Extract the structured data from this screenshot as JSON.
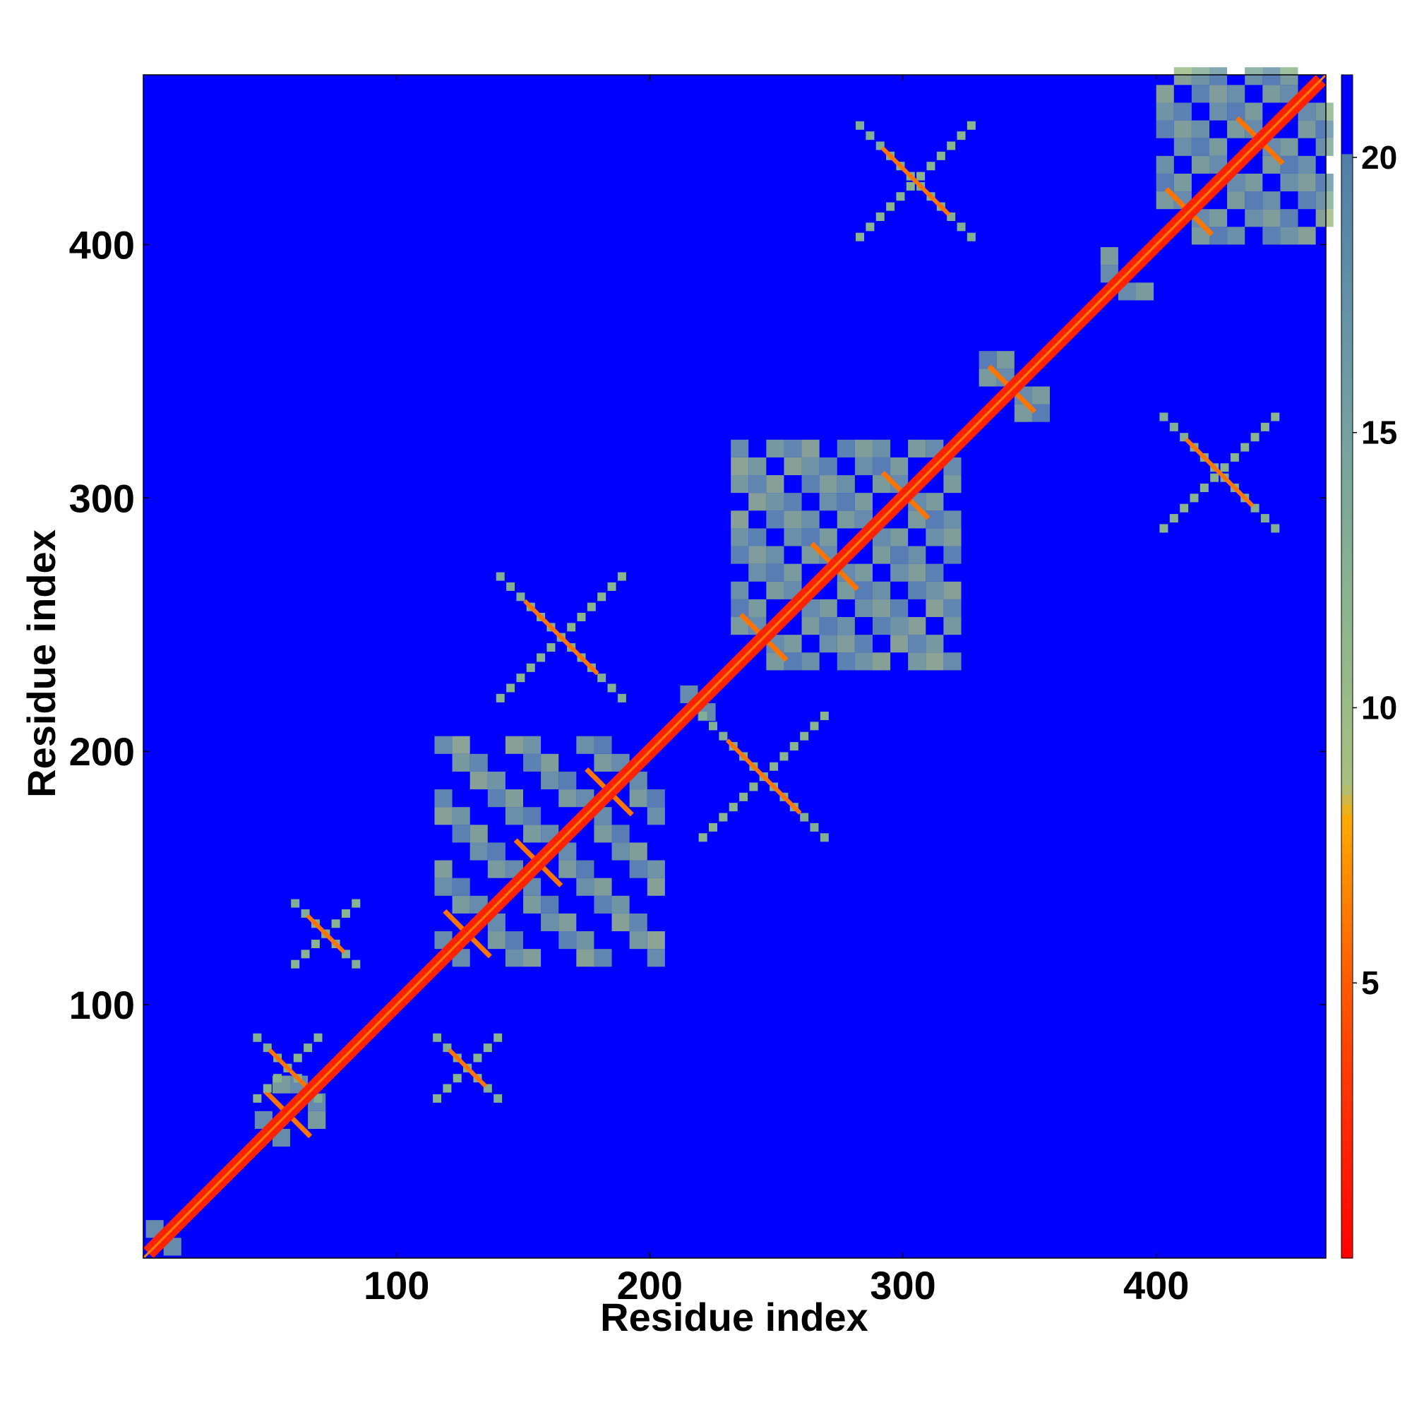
{
  "chart_data": {
    "type": "heatmap",
    "title": "",
    "xlabel": "Residue index",
    "ylabel": "Residue index",
    "xlim": [
      0,
      467
    ],
    "ylim": [
      0,
      467
    ],
    "x_ticks": [
      100,
      200,
      300,
      400
    ],
    "y_ticks": [
      100,
      200,
      300,
      400
    ],
    "colorbar": {
      "range": [
        0,
        21.5
      ],
      "ticks": [
        5,
        10,
        15,
        20
      ],
      "stops": [
        {
          "value": 0,
          "color": "#ff0000"
        },
        {
          "value": 3,
          "color": "#ff3300"
        },
        {
          "value": 5.5,
          "color": "#ff6600"
        },
        {
          "value": 8,
          "color": "#ffaa00"
        },
        {
          "value": 8.6,
          "color": "#a8c080"
        },
        {
          "value": 12,
          "color": "#8ab490"
        },
        {
          "value": 16,
          "color": "#6e9aa6"
        },
        {
          "value": 20,
          "color": "#4f7fa8"
        },
        {
          "value": 20.01,
          "color": "#0000ff"
        },
        {
          "value": 21.5,
          "color": "#0000ff"
        }
      ]
    },
    "background_value": 21,
    "diagonal": {
      "width_residues": 4,
      "value": 2
    },
    "helix_blocks": [
      {
        "from": 1,
        "to": 14,
        "kind": "diag"
      },
      {
        "from": 44,
        "to": 70,
        "kind": "diag"
      },
      {
        "from": 115,
        "to": 200,
        "kind": "diag"
      },
      {
        "from": 212,
        "to": 225,
        "kind": "diag"
      },
      {
        "from": 232,
        "to": 322,
        "kind": "diag"
      },
      {
        "from": 330,
        "to": 352,
        "kind": "diag"
      },
      {
        "from": 378,
        "to": 392,
        "kind": "diag"
      },
      {
        "from": 400,
        "to": 467,
        "kind": "diag"
      }
    ],
    "off_diagonal_contacts": [
      {
        "x": 57,
        "y": 75,
        "size": 12
      },
      {
        "x": 72,
        "y": 128,
        "size": 12
      },
      {
        "x": 128,
        "y": 75,
        "size": 12
      },
      {
        "x": 165,
        "y": 245,
        "size": 24
      },
      {
        "x": 245,
        "y": 190,
        "size": 24
      },
      {
        "x": 305,
        "y": 425,
        "size": 22
      },
      {
        "x": 425,
        "y": 310,
        "size": 22
      }
    ]
  }
}
